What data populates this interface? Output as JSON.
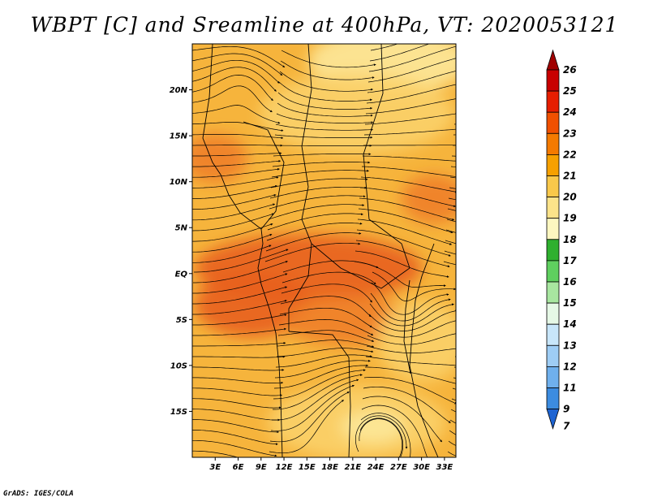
{
  "title": "WBPT [C] and Sreamline at 400hPa, VT: 2020053121",
  "credit": "GrADS: IGES/COLA",
  "map": {
    "lat_ticks": [
      "20N",
      "15N",
      "10N",
      "5N",
      "EQ",
      "5S",
      "10S",
      "15S"
    ],
    "lat_values": [
      20,
      15,
      10,
      5,
      0,
      -5,
      -10,
      -15
    ],
    "lon_ticks": [
      "3E",
      "6E",
      "9E",
      "12E",
      "15E",
      "18E",
      "21E",
      "24E",
      "27E",
      "30E",
      "33E"
    ],
    "lon_values": [
      3,
      6,
      9,
      12,
      15,
      18,
      21,
      24,
      27,
      30,
      33
    ],
    "lon_range": [
      0,
      34.5
    ],
    "lat_range": [
      -20,
      25
    ]
  },
  "colorbar": {
    "labels": [
      "26",
      "25",
      "24",
      "23",
      "22",
      "21",
      "20",
      "19",
      "18",
      "17",
      "16",
      "15",
      "14",
      "13",
      "12",
      "11",
      "9",
      "7"
    ],
    "colors": [
      "#a00000",
      "#c80000",
      "#e61e00",
      "#f05000",
      "#f47a00",
      "#f6a000",
      "#f9c84a",
      "#fce38a",
      "#fdf7c0",
      "#2fb02f",
      "#5fcf5f",
      "#a8e6a0",
      "#e6f8e6",
      "#c8e6fa",
      "#9ecdf5",
      "#6fb0ed",
      "#3c8ce0",
      "#1e64d2"
    ]
  },
  "colors": {
    "field_base": "#f6b43c",
    "field_warm": "#f0802a",
    "field_hot": "#e8601e",
    "field_cool": "#fbd26a",
    "field_light": "#fde89a",
    "streamline": "#000000",
    "border": "#000000"
  }
}
